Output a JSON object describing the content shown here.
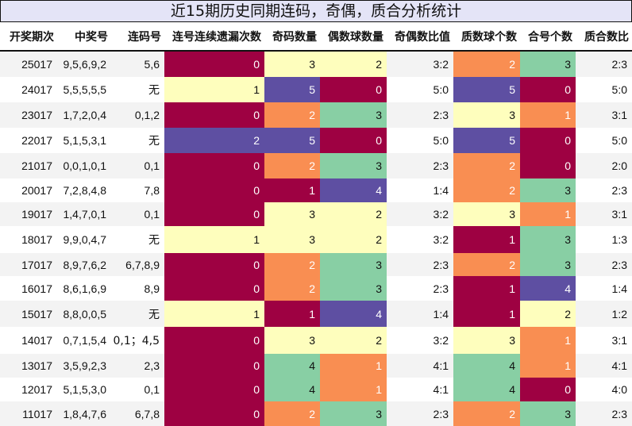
{
  "title": "近15期历史同期连码，奇偶，质合分析统计",
  "colors": {
    "v0": "#9e0142",
    "v1_dark": "#9e0142",
    "orange": "#f98e52",
    "yellow": "#fefebd",
    "green": "#88cfa4",
    "purple": "#5e4fa2"
  },
  "headers": [
    "开奖期次",
    "中奖号",
    "连码号",
    "连号连续遗漏次数",
    "奇码数量",
    "偶数球数量",
    "奇偶数比值",
    "质数球个数",
    "合号个数",
    "质合数比"
  ],
  "rows": [
    {
      "period": "25017",
      "numbers": "9,5,6,9,2",
      "consecutive": "5,6",
      "miss": "0",
      "odd": "3",
      "even": "2",
      "odd_even": "3:2",
      "prime": "2",
      "composite": "3",
      "prime_comp": "2:3"
    },
    {
      "period": "24017",
      "numbers": "5,5,5,5,5",
      "consecutive": "无",
      "miss": "1",
      "odd": "5",
      "even": "0",
      "odd_even": "5:0",
      "prime": "5",
      "composite": "0",
      "prime_comp": "5:0"
    },
    {
      "period": "23017",
      "numbers": "1,7,2,0,4",
      "consecutive": "0,1,2",
      "miss": "0",
      "odd": "2",
      "even": "3",
      "odd_even": "2:3",
      "prime": "3",
      "composite": "1",
      "prime_comp": "3:1"
    },
    {
      "period": "22017",
      "numbers": "5,1,5,3,1",
      "consecutive": "无",
      "miss": "2",
      "odd": "5",
      "even": "0",
      "odd_even": "5:0",
      "prime": "5",
      "composite": "0",
      "prime_comp": "5:0"
    },
    {
      "period": "21017",
      "numbers": "0,0,1,0,1",
      "consecutive": "0,1",
      "miss": "0",
      "odd": "2",
      "even": "3",
      "odd_even": "2:3",
      "prime": "2",
      "composite": "0",
      "prime_comp": "2:0"
    },
    {
      "period": "20017",
      "numbers": "7,2,8,4,8",
      "consecutive": "7,8",
      "miss": "0",
      "odd": "1",
      "even": "4",
      "odd_even": "1:4",
      "prime": "2",
      "composite": "3",
      "prime_comp": "2:3"
    },
    {
      "period": "19017",
      "numbers": "1,4,7,0,1",
      "consecutive": "0,1",
      "miss": "0",
      "odd": "3",
      "even": "2",
      "odd_even": "3:2",
      "prime": "3",
      "composite": "1",
      "prime_comp": "3:1"
    },
    {
      "period": "18017",
      "numbers": "9,9,0,4,7",
      "consecutive": "无",
      "miss": "1",
      "odd": "3",
      "even": "2",
      "odd_even": "3:2",
      "prime": "1",
      "composite": "3",
      "prime_comp": "1:3"
    },
    {
      "period": "17017",
      "numbers": "8,9,7,6,2",
      "consecutive": "6,7,8,9",
      "miss": "0",
      "odd": "2",
      "even": "3",
      "odd_even": "2:3",
      "prime": "2",
      "composite": "3",
      "prime_comp": "2:3"
    },
    {
      "period": "16017",
      "numbers": "8,6,1,6,9",
      "consecutive": "8,9",
      "miss": "0",
      "odd": "2",
      "even": "3",
      "odd_even": "2:3",
      "prime": "1",
      "composite": "4",
      "prime_comp": "1:4"
    },
    {
      "period": "15017",
      "numbers": "8,8,0,0,5",
      "consecutive": "无",
      "miss": "1",
      "odd": "1",
      "even": "4",
      "odd_even": "1:4",
      "prime": "1",
      "composite": "2",
      "prime_comp": "1:2"
    },
    {
      "period": "14017",
      "numbers": "0,7,1,5,4",
      "consecutive": "0,1；4,5",
      "miss": "0",
      "odd": "3",
      "even": "2",
      "odd_even": "3:2",
      "prime": "3",
      "composite": "1",
      "prime_comp": "3:1"
    },
    {
      "period": "13017",
      "numbers": "3,5,9,2,3",
      "consecutive": "2,3",
      "miss": "0",
      "odd": "4",
      "even": "1",
      "odd_even": "4:1",
      "prime": "4",
      "composite": "1",
      "prime_comp": "4:1"
    },
    {
      "period": "12017",
      "numbers": "5,1,5,3,0",
      "consecutive": "0,1",
      "miss": "0",
      "odd": "4",
      "even": "1",
      "odd_even": "4:1",
      "prime": "4",
      "composite": "0",
      "prime_comp": "4:0"
    },
    {
      "period": "11017",
      "numbers": "1,8,4,7,6",
      "consecutive": "6,7,8",
      "miss": "0",
      "odd": "2",
      "even": "3",
      "odd_even": "2:3",
      "prime": "2",
      "composite": "3",
      "prime_comp": "2:3"
    }
  ],
  "cell_colors": {
    "miss": [
      "v0",
      "yellow",
      "v0",
      "purple",
      "v0",
      "v0",
      "v0",
      "yellow",
      "v0",
      "v0",
      "yellow",
      "v0",
      "v0",
      "v0",
      "v0"
    ],
    "odd": [
      "yellow",
      "purple",
      "orange",
      "purple",
      "orange",
      "v0",
      "yellow",
      "yellow",
      "orange",
      "orange",
      "v0",
      "yellow",
      "green",
      "green",
      "orange"
    ],
    "even": [
      "yellow",
      "v0",
      "green",
      "v0",
      "green",
      "purple",
      "yellow",
      "yellow",
      "green",
      "green",
      "purple",
      "yellow",
      "orange",
      "orange",
      "green"
    ],
    "prime": [
      "orange",
      "purple",
      "yellow",
      "purple",
      "orange",
      "orange",
      "yellow",
      "v0",
      "orange",
      "v0",
      "v0",
      "yellow",
      "green",
      "green",
      "orange"
    ],
    "composite": [
      "green",
      "v0",
      "orange",
      "v0",
      "v0",
      "green",
      "orange",
      "green",
      "green",
      "purple",
      "yellow",
      "orange",
      "orange",
      "v0",
      "green"
    ]
  }
}
